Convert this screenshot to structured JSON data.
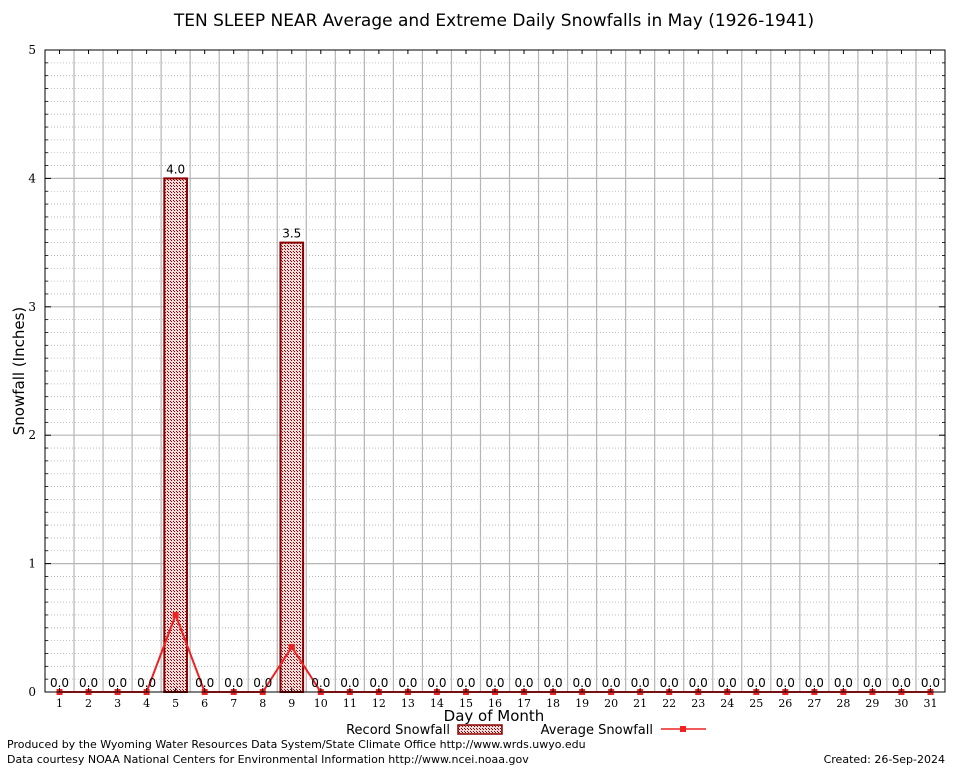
{
  "chart_data": {
    "type": "bar",
    "title": "TEN SLEEP NEAR Average and Extreme Daily Snowfalls in May (1926-1941)",
    "xlabel": "Day of Month",
    "ylabel": "Snowfall (Inches)",
    "ylim": [
      0,
      5
    ],
    "yticks": [
      "0",
      "1",
      "2",
      "3",
      "4",
      "5"
    ],
    "grid": true,
    "categories": [
      "1",
      "2",
      "3",
      "4",
      "5",
      "6",
      "7",
      "8",
      "9",
      "10",
      "11",
      "12",
      "13",
      "14",
      "15",
      "16",
      "17",
      "18",
      "19",
      "20",
      "21",
      "22",
      "23",
      "24",
      "25",
      "26",
      "27",
      "28",
      "29",
      "30",
      "31"
    ],
    "series": [
      {
        "name": "Record Snowfall",
        "style": "bar",
        "color": "#8b0000",
        "values": [
          0,
          0,
          0,
          0,
          4.0,
          0,
          0,
          0,
          3.5,
          0,
          0,
          0,
          0,
          0,
          0,
          0,
          0,
          0,
          0,
          0,
          0,
          0,
          0,
          0,
          0,
          0,
          0,
          0,
          0,
          0,
          0
        ],
        "labels": [
          "0.0",
          "0.0",
          "0.0",
          "0.0",
          "4.0",
          "0.0",
          "0.0",
          "0.0",
          "3.5",
          "0.0",
          "0.0",
          "0.0",
          "0.0",
          "0.0",
          "0.0",
          "0.0",
          "0.0",
          "0.0",
          "0.0",
          "0.0",
          "0.0",
          "0.0",
          "0.0",
          "0.0",
          "0.0",
          "0.0",
          "0.0",
          "0.0",
          "0.0",
          "0.0",
          "0.0"
        ]
      },
      {
        "name": "Average Snowfall",
        "style": "line",
        "color": "#ee2222",
        "values": [
          0,
          0,
          0,
          0,
          0.6,
          0,
          0,
          0,
          0.35,
          0,
          0,
          0,
          0,
          0,
          0,
          0,
          0,
          0,
          0,
          0,
          0,
          0,
          0,
          0,
          0,
          0,
          0,
          0,
          0,
          0,
          0
        ]
      }
    ],
    "legend_position": "bottom"
  },
  "footer": {
    "produced_by": "Produced by the Wyoming Water Resources Data System/State Climate Office http://www.wrds.uwyo.edu",
    "courtesy": "Data courtesy NOAA National Centers for Environmental Information http://www.ncei.noaa.gov",
    "created": "Created:  26-Sep-2024"
  }
}
